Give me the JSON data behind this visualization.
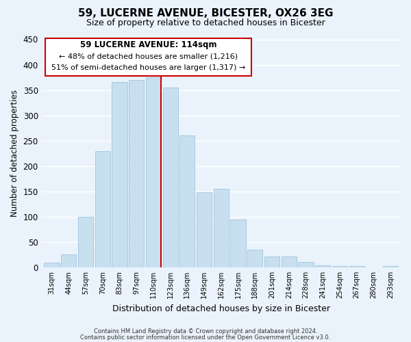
{
  "title": "59, LUCERNE AVENUE, BICESTER, OX26 3EG",
  "subtitle": "Size of property relative to detached houses in Bicester",
  "xlabel": "Distribution of detached houses by size in Bicester",
  "ylabel": "Number of detached properties",
  "bar_labels": [
    "31sqm",
    "44sqm",
    "57sqm",
    "70sqm",
    "83sqm",
    "97sqm",
    "110sqm",
    "123sqm",
    "136sqm",
    "149sqm",
    "162sqm",
    "175sqm",
    "188sqm",
    "201sqm",
    "214sqm",
    "228sqm",
    "241sqm",
    "254sqm",
    "267sqm",
    "280sqm",
    "293sqm"
  ],
  "bar_values": [
    10,
    25,
    100,
    230,
    365,
    370,
    375,
    355,
    260,
    148,
    155,
    95,
    35,
    22,
    22,
    11,
    4,
    2,
    2,
    0,
    2
  ],
  "bar_color": "#c8dff0",
  "bar_edge_color": "#a0c4e0",
  "ylim": [
    0,
    450
  ],
  "yticks": [
    0,
    50,
    100,
    150,
    200,
    250,
    300,
    350,
    400,
    450
  ],
  "property_line_color": "#cc0000",
  "annotation_title": "59 LUCERNE AVENUE: 114sqm",
  "annotation_line1": "← 48% of detached houses are smaller (1,216)",
  "annotation_line2": "51% of semi-detached houses are larger (1,317) →",
  "annotation_box_facecolor": "#ffffff",
  "annotation_box_edgecolor": "#cc0000",
  "footer_line1": "Contains HM Land Registry data © Crown copyright and database right 2024.",
  "footer_line2": "Contains public sector information licensed under the Open Government Licence v3.0.",
  "background_color": "#eaf3fb",
  "grid_color": "#ffffff"
}
